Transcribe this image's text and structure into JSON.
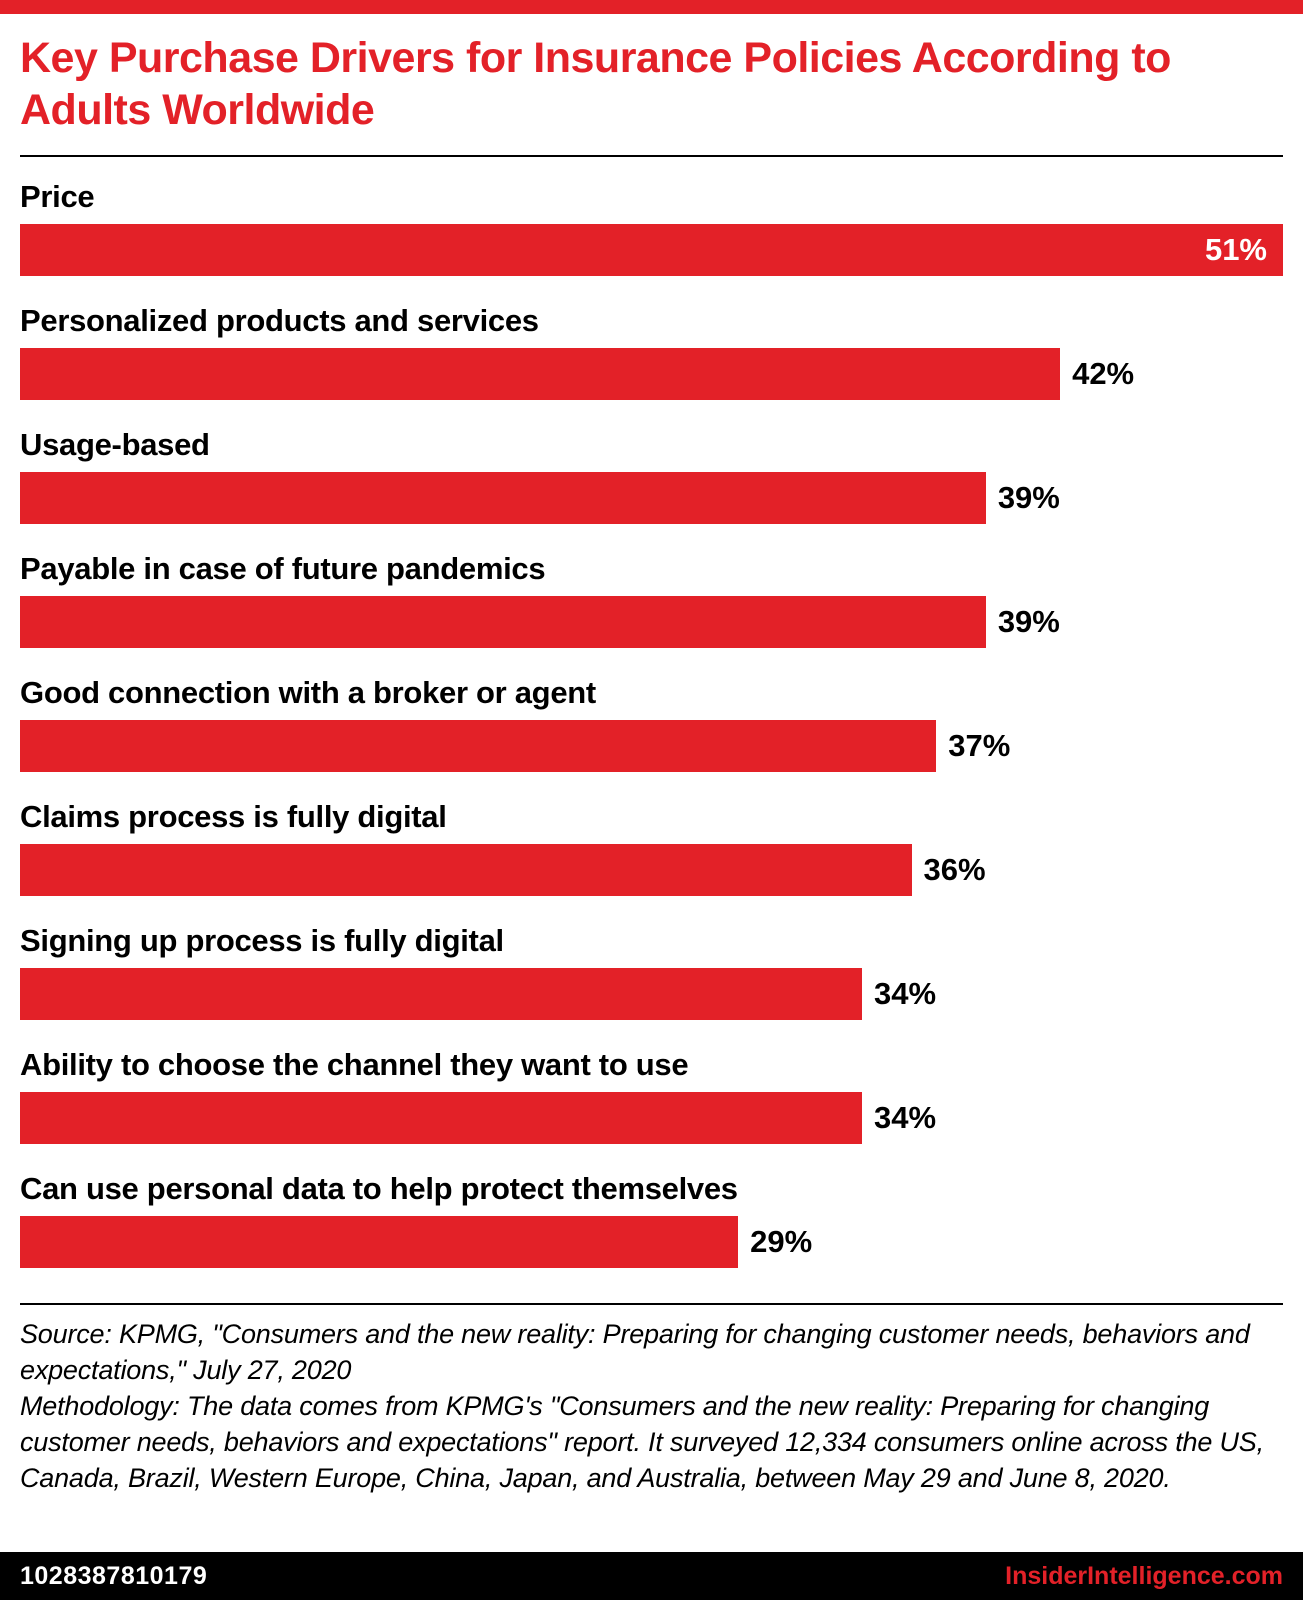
{
  "title": "Key Purchase Drivers for Insurance Policies According to Adults Worldwide",
  "colors": {
    "accent_red": "#e32128",
    "text_black": "#000000",
    "footer_bg": "#000000",
    "footer_text": "#ffffff"
  },
  "chart_data": {
    "type": "bar",
    "orientation": "horizontal",
    "title": "Key Purchase Drivers for Insurance Policies According to Adults Worldwide",
    "categories": [
      "Price",
      "Personalized products and services",
      "Usage-based",
      "Payable in case of future pandemics",
      "Good connection with a broker or agent",
      "Claims process is fully digital",
      "Signing up process is fully digital",
      "Ability to choose the channel they want to use",
      "Can use personal data to help protect themselves"
    ],
    "values": [
      51,
      42,
      39,
      39,
      37,
      36,
      34,
      34,
      29
    ],
    "value_suffix": "%",
    "value_labels": [
      "51%",
      "42%",
      "39%",
      "39%",
      "37%",
      "36%",
      "34%",
      "34%",
      "29%"
    ],
    "max_value": 51,
    "bar_color": "#e32128",
    "grid": false,
    "legend": "none"
  },
  "source_text": "Source: KPMG, \"Consumers and the new reality: Preparing for changing customer needs, behaviors and expectations,\" July 27, 2020",
  "methodology_text": "Methodology: The data comes from KPMG's \"Consumers and the new reality: Preparing for changing customer needs, behaviors and expectations\" report. It surveyed 12,334 consumers online across the US, Canada, Brazil, Western Europe, China, Japan, and Australia, between May 29 and June 8, 2020.",
  "footer": {
    "chart_id": "1028387810179",
    "site": "InsiderIntelligence.com"
  }
}
